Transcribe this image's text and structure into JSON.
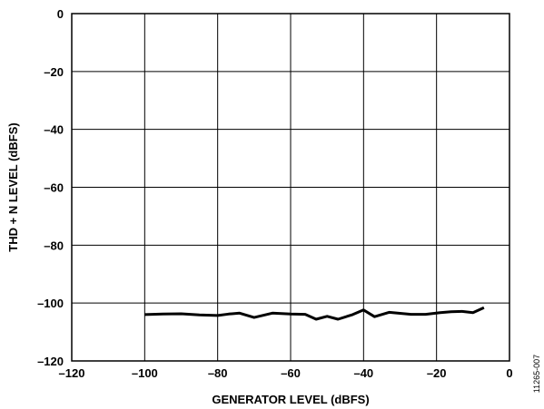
{
  "chart_data": {
    "type": "line",
    "xlabel": "GENERATOR LEVEL (dBFS)",
    "ylabel": "THD + N LEVEL (dBFS)",
    "xlim": [
      -120,
      0
    ],
    "ylim": [
      -120,
      0
    ],
    "xticks": [
      -120,
      -100,
      -80,
      -60,
      -40,
      -20,
      0
    ],
    "yticks": [
      -120,
      -100,
      -80,
      -60,
      -40,
      -20,
      0
    ],
    "xtick_labels": [
      "–120",
      "–100",
      "–80",
      "–60",
      "–40",
      "–20",
      "0"
    ],
    "ytick_labels": [
      "–120",
      "–100",
      "–80",
      "–60",
      "–40",
      "–20",
      "0"
    ],
    "grid": true,
    "line_color": "#000000",
    "series": [
      {
        "x": [
          -100,
          -95,
          -90,
          -85,
          -80,
          -77,
          -74,
          -70,
          -65,
          -60,
          -56,
          -53,
          -50,
          -47,
          -43,
          -40,
          -37,
          -33,
          -27,
          -23,
          -19,
          -16,
          -13,
          -10,
          -7
        ],
        "y": [
          -104.0,
          -103.8,
          -103.7,
          -104.1,
          -104.3,
          -103.8,
          -103.5,
          -105.0,
          -103.5,
          -103.8,
          -103.9,
          -105.6,
          -104.6,
          -105.6,
          -104.0,
          -102.4,
          -104.7,
          -103.2,
          -103.9,
          -103.9,
          -103.3,
          -103.0,
          -102.9,
          -103.3,
          -101.6
        ]
      }
    ],
    "figure_id": "11265-007"
  }
}
